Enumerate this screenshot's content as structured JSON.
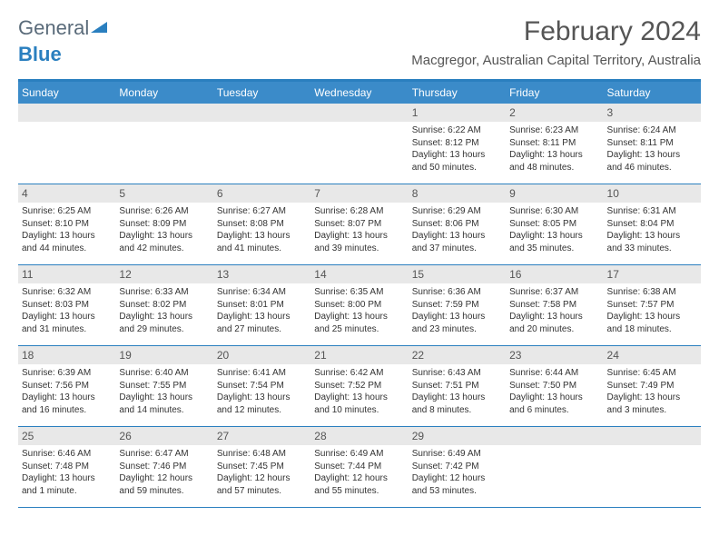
{
  "logo": {
    "text1": "General",
    "text2": "Blue"
  },
  "title": "February 2024",
  "location": "Macgregor, Australian Capital Territory, Australia",
  "colors": {
    "header_bg": "#3b8bc9",
    "accent": "#2a7fbf",
    "daynum_bg": "#e8e8e8",
    "text": "#333333",
    "title_text": "#555555"
  },
  "day_names": [
    "Sunday",
    "Monday",
    "Tuesday",
    "Wednesday",
    "Thursday",
    "Friday",
    "Saturday"
  ],
  "weeks": [
    {
      "days": [
        null,
        null,
        null,
        null,
        {
          "num": "1",
          "sunrise": "Sunrise: 6:22 AM",
          "sunset": "Sunset: 8:12 PM",
          "daylight": "Daylight: 13 hours and 50 minutes."
        },
        {
          "num": "2",
          "sunrise": "Sunrise: 6:23 AM",
          "sunset": "Sunset: 8:11 PM",
          "daylight": "Daylight: 13 hours and 48 minutes."
        },
        {
          "num": "3",
          "sunrise": "Sunrise: 6:24 AM",
          "sunset": "Sunset: 8:11 PM",
          "daylight": "Daylight: 13 hours and 46 minutes."
        }
      ]
    },
    {
      "days": [
        {
          "num": "4",
          "sunrise": "Sunrise: 6:25 AM",
          "sunset": "Sunset: 8:10 PM",
          "daylight": "Daylight: 13 hours and 44 minutes."
        },
        {
          "num": "5",
          "sunrise": "Sunrise: 6:26 AM",
          "sunset": "Sunset: 8:09 PM",
          "daylight": "Daylight: 13 hours and 42 minutes."
        },
        {
          "num": "6",
          "sunrise": "Sunrise: 6:27 AM",
          "sunset": "Sunset: 8:08 PM",
          "daylight": "Daylight: 13 hours and 41 minutes."
        },
        {
          "num": "7",
          "sunrise": "Sunrise: 6:28 AM",
          "sunset": "Sunset: 8:07 PM",
          "daylight": "Daylight: 13 hours and 39 minutes."
        },
        {
          "num": "8",
          "sunrise": "Sunrise: 6:29 AM",
          "sunset": "Sunset: 8:06 PM",
          "daylight": "Daylight: 13 hours and 37 minutes."
        },
        {
          "num": "9",
          "sunrise": "Sunrise: 6:30 AM",
          "sunset": "Sunset: 8:05 PM",
          "daylight": "Daylight: 13 hours and 35 minutes."
        },
        {
          "num": "10",
          "sunrise": "Sunrise: 6:31 AM",
          "sunset": "Sunset: 8:04 PM",
          "daylight": "Daylight: 13 hours and 33 minutes."
        }
      ]
    },
    {
      "days": [
        {
          "num": "11",
          "sunrise": "Sunrise: 6:32 AM",
          "sunset": "Sunset: 8:03 PM",
          "daylight": "Daylight: 13 hours and 31 minutes."
        },
        {
          "num": "12",
          "sunrise": "Sunrise: 6:33 AM",
          "sunset": "Sunset: 8:02 PM",
          "daylight": "Daylight: 13 hours and 29 minutes."
        },
        {
          "num": "13",
          "sunrise": "Sunrise: 6:34 AM",
          "sunset": "Sunset: 8:01 PM",
          "daylight": "Daylight: 13 hours and 27 minutes."
        },
        {
          "num": "14",
          "sunrise": "Sunrise: 6:35 AM",
          "sunset": "Sunset: 8:00 PM",
          "daylight": "Daylight: 13 hours and 25 minutes."
        },
        {
          "num": "15",
          "sunrise": "Sunrise: 6:36 AM",
          "sunset": "Sunset: 7:59 PM",
          "daylight": "Daylight: 13 hours and 23 minutes."
        },
        {
          "num": "16",
          "sunrise": "Sunrise: 6:37 AM",
          "sunset": "Sunset: 7:58 PM",
          "daylight": "Daylight: 13 hours and 20 minutes."
        },
        {
          "num": "17",
          "sunrise": "Sunrise: 6:38 AM",
          "sunset": "Sunset: 7:57 PM",
          "daylight": "Daylight: 13 hours and 18 minutes."
        }
      ]
    },
    {
      "days": [
        {
          "num": "18",
          "sunrise": "Sunrise: 6:39 AM",
          "sunset": "Sunset: 7:56 PM",
          "daylight": "Daylight: 13 hours and 16 minutes."
        },
        {
          "num": "19",
          "sunrise": "Sunrise: 6:40 AM",
          "sunset": "Sunset: 7:55 PM",
          "daylight": "Daylight: 13 hours and 14 minutes."
        },
        {
          "num": "20",
          "sunrise": "Sunrise: 6:41 AM",
          "sunset": "Sunset: 7:54 PM",
          "daylight": "Daylight: 13 hours and 12 minutes."
        },
        {
          "num": "21",
          "sunrise": "Sunrise: 6:42 AM",
          "sunset": "Sunset: 7:52 PM",
          "daylight": "Daylight: 13 hours and 10 minutes."
        },
        {
          "num": "22",
          "sunrise": "Sunrise: 6:43 AM",
          "sunset": "Sunset: 7:51 PM",
          "daylight": "Daylight: 13 hours and 8 minutes."
        },
        {
          "num": "23",
          "sunrise": "Sunrise: 6:44 AM",
          "sunset": "Sunset: 7:50 PM",
          "daylight": "Daylight: 13 hours and 6 minutes."
        },
        {
          "num": "24",
          "sunrise": "Sunrise: 6:45 AM",
          "sunset": "Sunset: 7:49 PM",
          "daylight": "Daylight: 13 hours and 3 minutes."
        }
      ]
    },
    {
      "days": [
        {
          "num": "25",
          "sunrise": "Sunrise: 6:46 AM",
          "sunset": "Sunset: 7:48 PM",
          "daylight": "Daylight: 13 hours and 1 minute."
        },
        {
          "num": "26",
          "sunrise": "Sunrise: 6:47 AM",
          "sunset": "Sunset: 7:46 PM",
          "daylight": "Daylight: 12 hours and 59 minutes."
        },
        {
          "num": "27",
          "sunrise": "Sunrise: 6:48 AM",
          "sunset": "Sunset: 7:45 PM",
          "daylight": "Daylight: 12 hours and 57 minutes."
        },
        {
          "num": "28",
          "sunrise": "Sunrise: 6:49 AM",
          "sunset": "Sunset: 7:44 PM",
          "daylight": "Daylight: 12 hours and 55 minutes."
        },
        {
          "num": "29",
          "sunrise": "Sunrise: 6:49 AM",
          "sunset": "Sunset: 7:42 PM",
          "daylight": "Daylight: 12 hours and 53 minutes."
        },
        null,
        null
      ]
    }
  ]
}
